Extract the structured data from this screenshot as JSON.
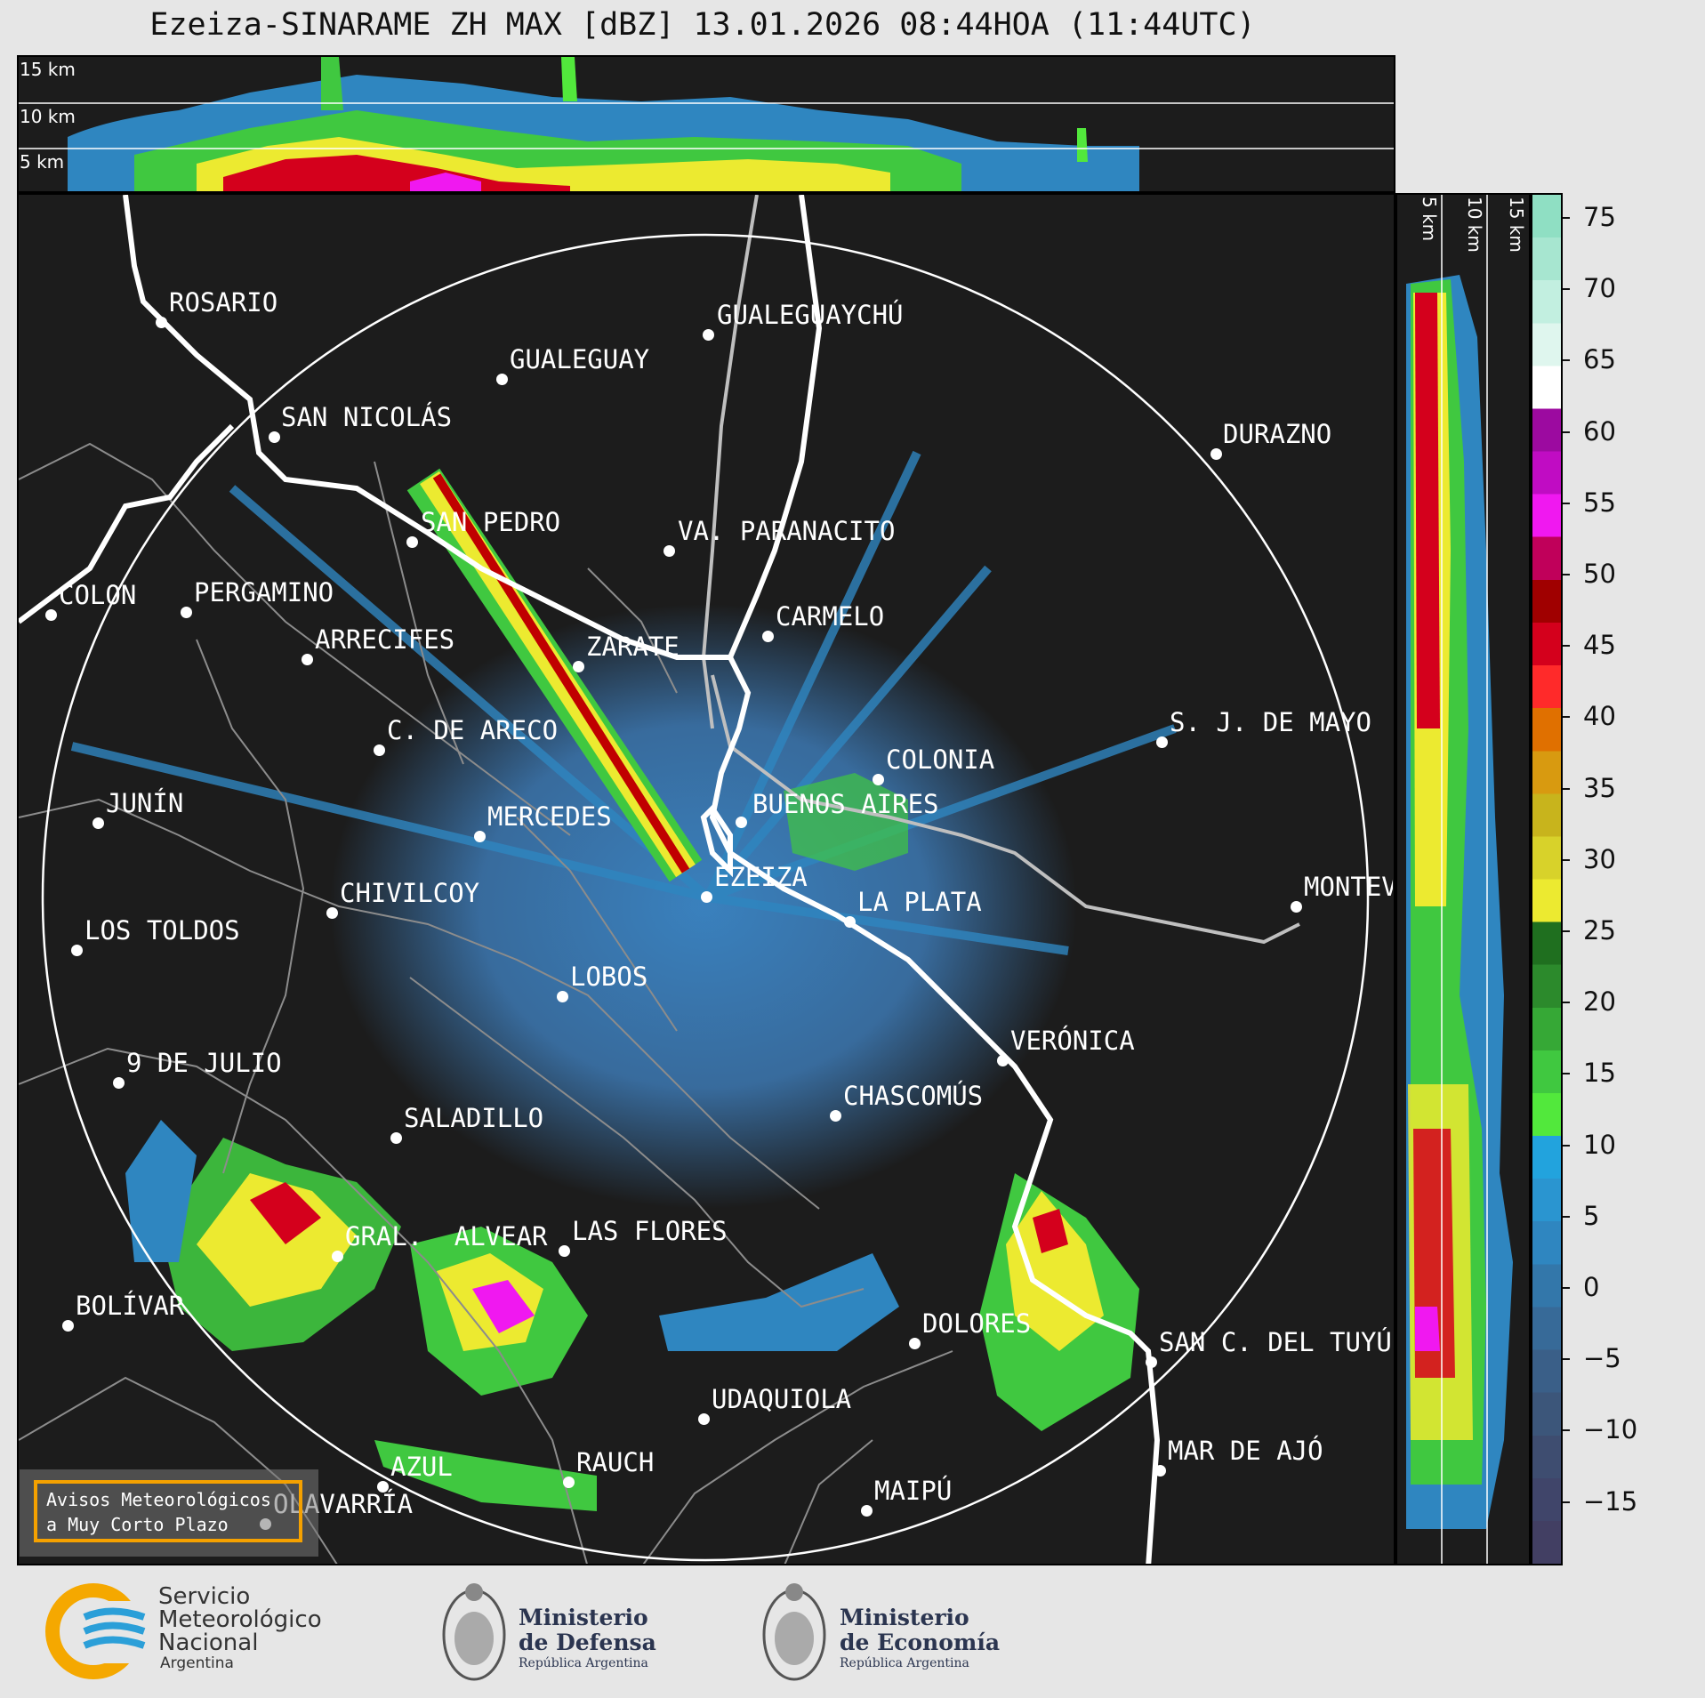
{
  "title": "Ezeiza-SINARAME ZH MAX [dBZ] 13.01.2026 08:44HOA (11:44UTC)",
  "altitude_labels": [
    "15 km",
    "10 km",
    "5 km"
  ],
  "side_altitude_labels": [
    "5 km",
    "10 km",
    "15 km"
  ],
  "colorbar": {
    "unit": "dBZ",
    "ticks": [
      "75",
      "70",
      "65",
      "60",
      "55",
      "50",
      "45",
      "40",
      "35",
      "30",
      "25",
      "20",
      "15",
      "10",
      "5",
      "0",
      "−5",
      "−10",
      "−15"
    ],
    "colors": [
      "#8fdfc3",
      "#a7e6d0",
      "#c2efe0",
      "#dff6ee",
      "#ffffff",
      "#9c0aa0",
      "#c00cc3",
      "#f018f0",
      "#c0005a",
      "#a00000",
      "#d4001c",
      "#ff2a2a",
      "#e07000",
      "#d89a10",
      "#c8b41c",
      "#d8d22a",
      "#ecea30",
      "#1f6f1f",
      "#2c8a2c",
      "#36a836",
      "#40c840",
      "#52e83c",
      "#22a3dd",
      "#2a95d0",
      "#2f86c0",
      "#3377aa",
      "#376a98",
      "#3a5f88",
      "#3c567a",
      "#3e4d70",
      "#40456a",
      "#423f63"
    ]
  },
  "cities": [
    {
      "name": "ROSARIO"
    },
    {
      "name": "GUALEGUAYCHÚ"
    },
    {
      "name": "GUALEGUAY"
    },
    {
      "name": "SAN NICOLÁS"
    },
    {
      "name": "DURAZNO"
    },
    {
      "name": "SAN PEDRO"
    },
    {
      "name": "VA. PARANACITO"
    },
    {
      "name": "COLON"
    },
    {
      "name": "PERGAMINO"
    },
    {
      "name": "CARMELO"
    },
    {
      "name": "ARRECIFES"
    },
    {
      "name": "ZÁRATE"
    },
    {
      "name": "C. DE ARECO"
    },
    {
      "name": "S. J. DE MAYO"
    },
    {
      "name": "COLONIA"
    },
    {
      "name": "JUNÍN"
    },
    {
      "name": "BUENOS AIRES"
    },
    {
      "name": "MERCEDES"
    },
    {
      "name": "EZEIZA"
    },
    {
      "name": "MONTEVIDEO"
    },
    {
      "name": "CHIVILCOY"
    },
    {
      "name": "LA PLATA"
    },
    {
      "name": "LOS TOLDOS"
    },
    {
      "name": "LOBOS"
    },
    {
      "name": "VERÓNICA"
    },
    {
      "name": "9 DE JULIO"
    },
    {
      "name": "CHASCOMÚS"
    },
    {
      "name": "SALADILLO"
    },
    {
      "name": "GRAL. ALVEAR"
    },
    {
      "name": "LAS FLORES"
    },
    {
      "name": "BOLÍVAR"
    },
    {
      "name": "DOLORES"
    },
    {
      "name": "SAN C. DEL TUYÚ"
    },
    {
      "name": "UDAQUIOLA"
    },
    {
      "name": "AZUL"
    },
    {
      "name": "RAUCH"
    },
    {
      "name": "MAR DE AJÓ"
    },
    {
      "name": "OLAVARRÍA"
    },
    {
      "name": "MAIPÚ"
    }
  ],
  "aviso": {
    "line1": "Avisos Meteorológicos",
    "line2": "a Muy Corto Plazo"
  },
  "logos": {
    "smn": {
      "line1": "Servicio",
      "line2": "Meteorológico",
      "line3": "Nacional",
      "line4": "Argentina"
    },
    "defensa": {
      "line1": "Ministerio",
      "line2": "de Defensa",
      "line3": "República Argentina"
    },
    "economia": {
      "line1": "Ministerio",
      "line2": "de Economía",
      "line3": "República Argentina"
    }
  }
}
